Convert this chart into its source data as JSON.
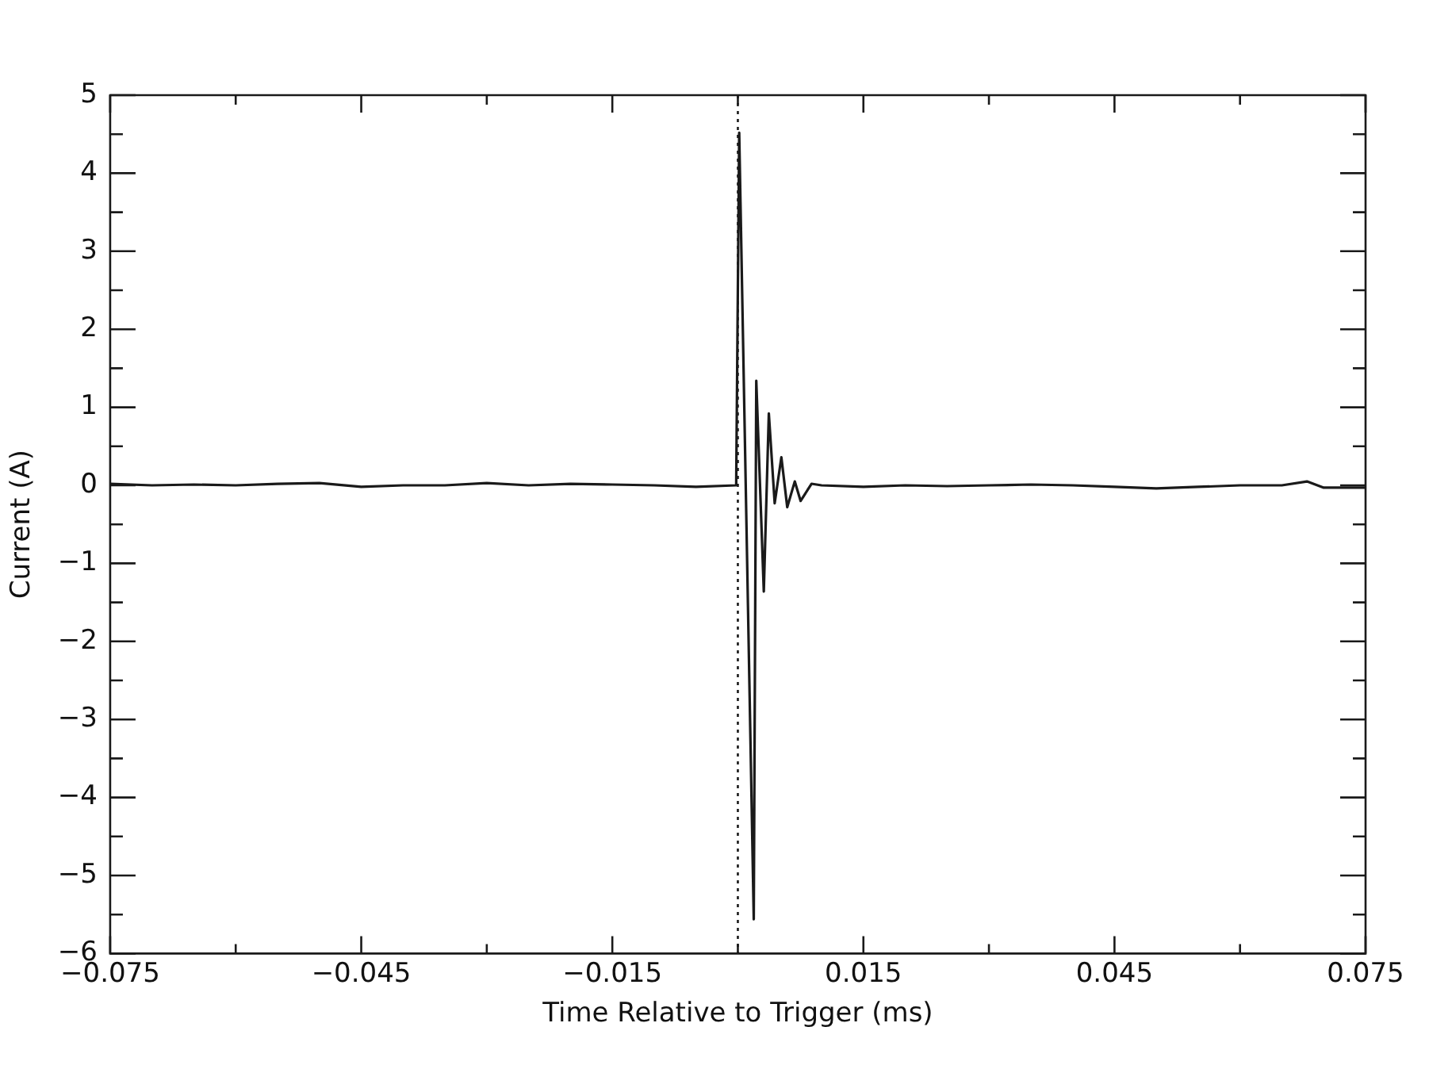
{
  "chart_data": {
    "type": "line",
    "xlabel": "Time Relative to Trigger (ms)",
    "ylabel": "Current (A)",
    "x": [
      -0.075,
      -0.07,
      -0.065,
      -0.06,
      -0.055,
      -0.05,
      -0.045,
      -0.04,
      -0.035,
      -0.03,
      -0.025,
      -0.02,
      -0.015,
      -0.01,
      -0.005,
      -0.0002,
      0.00016,
      0.0019,
      0.0022,
      0.0031,
      0.0037,
      0.0044,
      0.0052,
      0.0059,
      0.0068,
      0.0075,
      0.0088,
      0.01,
      0.015,
      0.02,
      0.025,
      0.03,
      0.035,
      0.04,
      0.045,
      0.05,
      0.055,
      0.06,
      0.065,
      0.068,
      0.07,
      0.075
    ],
    "series": [
      {
        "color": "#1a1a1a",
        "values": [
          0.02,
          0.0,
          0.01,
          0.0,
          0.02,
          0.03,
          -0.02,
          0.0,
          0.0,
          0.03,
          0.0,
          0.02,
          0.01,
          0.0,
          -0.02,
          0.0,
          4.52,
          -5.56,
          1.34,
          -1.36,
          0.92,
          -0.23,
          0.36,
          -0.28,
          0.05,
          -0.2,
          0.02,
          0.0,
          -0.02,
          0.0,
          -0.01,
          0.0,
          0.01,
          0.0,
          -0.02,
          -0.04,
          -0.02,
          0.0,
          0.0,
          0.05,
          -0.03,
          -0.03
        ]
      }
    ],
    "xlim": [
      -0.075,
      0.075
    ],
    "xticks": [
      -0.075,
      {
        "value": -0.06,
        "label": null
      },
      -0.045,
      {
        "value": -0.03,
        "label": null
      },
      -0.015,
      {
        "value": 0,
        "label": null
      },
      0.015,
      {
        "value": 0.03,
        "label": null
      },
      0.045,
      {
        "value": 0.06,
        "label": null
      },
      0.075
    ],
    "ylim": [
      -6,
      5
    ],
    "yticks": [
      -6,
      {
        "value": -5.5,
        "label": null
      },
      -5,
      {
        "value": -4.5,
        "label": null
      },
      -4,
      {
        "value": -3.5,
        "label": null
      },
      -3,
      {
        "value": -2.5,
        "label": null
      },
      -2,
      {
        "value": -1.5,
        "label": null
      },
      -1,
      {
        "value": -0.5,
        "label": null
      },
      0,
      {
        "value": 0.5,
        "label": null
      },
      1,
      {
        "value": 1.5,
        "label": null
      },
      2,
      {
        "value": 2.5,
        "label": null
      },
      3,
      {
        "value": 3.5,
        "label": null
      },
      4,
      {
        "value": 4.5,
        "label": null
      },
      5
    ],
    "ref_lines": [
      {
        "axis": "x",
        "value": 0,
        "line_style": "dotted",
        "color": "#1a1a1a"
      }
    ],
    "grid": false,
    "legend": false,
    "marker": "none",
    "line_style": "solid"
  }
}
